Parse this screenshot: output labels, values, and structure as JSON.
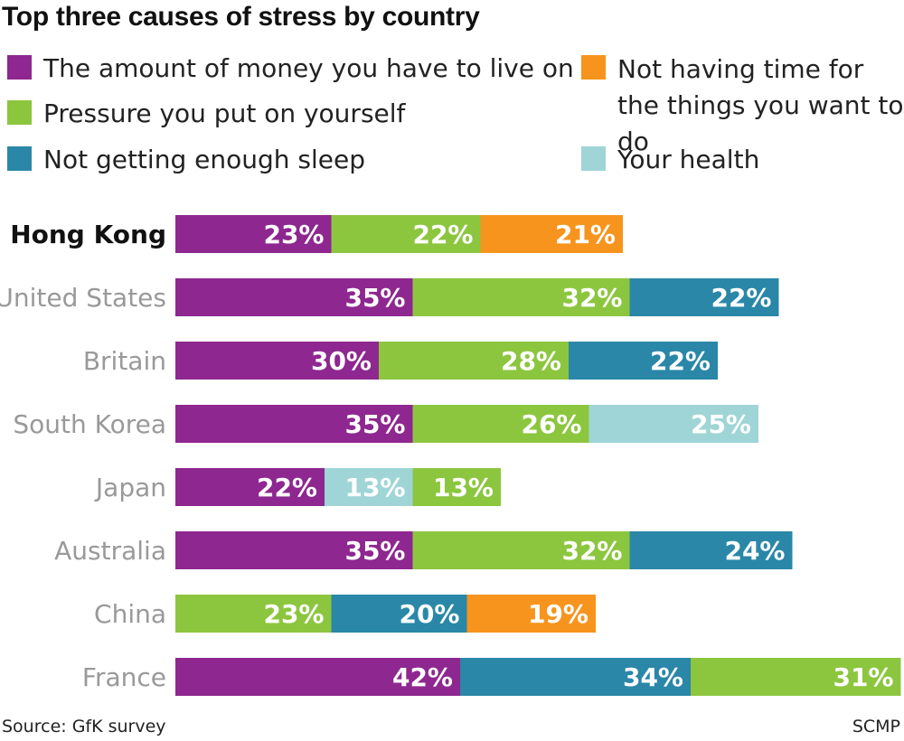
{
  "title": "Top three causes of stress by country",
  "legend": {
    "money": {
      "label": "The amount of money you have to live on",
      "color": "#8e278f"
    },
    "pressure": {
      "label": "Pressure you put on yourself",
      "color": "#8cc63f"
    },
    "sleep": {
      "label": "Not getting enough sleep",
      "color": "#2a87a8"
    },
    "time": {
      "label": "Not having time for the things you want to do",
      "color": "#f7941d"
    },
    "health": {
      "label": "Your health",
      "color": "#9fd5d6"
    }
  },
  "chart_data": {
    "type": "bar",
    "orientation": "horizontal",
    "stacked": true,
    "unit": "%",
    "rows": [
      {
        "country": "Hong Kong",
        "highlight": true,
        "segments": [
          {
            "cause": "money",
            "value": 23
          },
          {
            "cause": "pressure",
            "value": 22
          },
          {
            "cause": "time",
            "value": 21
          }
        ]
      },
      {
        "country": "United States",
        "segments": [
          {
            "cause": "money",
            "value": 35
          },
          {
            "cause": "pressure",
            "value": 32
          },
          {
            "cause": "sleep",
            "value": 22
          }
        ]
      },
      {
        "country": "Britain",
        "segments": [
          {
            "cause": "money",
            "value": 30
          },
          {
            "cause": "pressure",
            "value": 28
          },
          {
            "cause": "sleep",
            "value": 22
          }
        ]
      },
      {
        "country": "South Korea",
        "segments": [
          {
            "cause": "money",
            "value": 35
          },
          {
            "cause": "pressure",
            "value": 26
          },
          {
            "cause": "health",
            "value": 25
          }
        ]
      },
      {
        "country": "Japan",
        "segments": [
          {
            "cause": "money",
            "value": 22
          },
          {
            "cause": "health",
            "value": 13
          },
          {
            "cause": "pressure",
            "value": 13
          }
        ]
      },
      {
        "country": "Australia",
        "segments": [
          {
            "cause": "money",
            "value": 35
          },
          {
            "cause": "pressure",
            "value": 32
          },
          {
            "cause": "sleep",
            "value": 24
          }
        ]
      },
      {
        "country": "China",
        "segments": [
          {
            "cause": "pressure",
            "value": 23
          },
          {
            "cause": "sleep",
            "value": 20
          },
          {
            "cause": "time",
            "value": 19
          }
        ]
      },
      {
        "country": "France",
        "segments": [
          {
            "cause": "money",
            "value": 42
          },
          {
            "cause": "sleep",
            "value": 34
          },
          {
            "cause": "pressure",
            "value": 31
          }
        ]
      }
    ]
  },
  "footer": {
    "source": "Source: GfK survey",
    "credit": "SCMP"
  }
}
